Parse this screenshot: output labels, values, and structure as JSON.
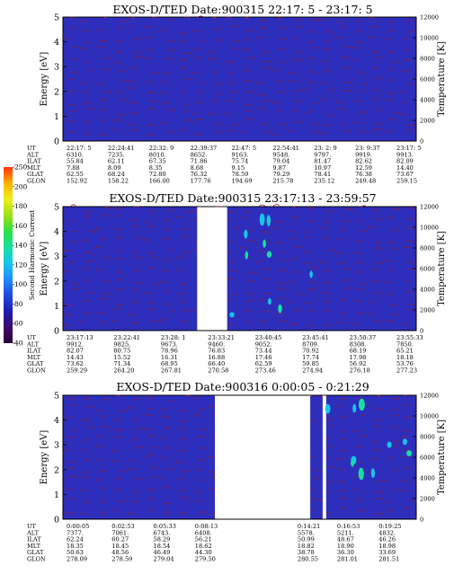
{
  "colors": {
    "background": "#2e2ebd",
    "contour": "#8a1f3a",
    "gap": "#ffffff",
    "colorbar": [
      "#2b0033",
      "#3b0a6e",
      "#1c1cb0",
      "#1e4be0",
      "#1f8bff",
      "#15c8e8",
      "#19e0a0",
      "#2ee040",
      "#9ee018",
      "#f0f018",
      "#ffb000",
      "#ff3010"
    ]
  },
  "colorbar": {
    "label": "Second Harmonic Current",
    "ticks": [
      "40",
      "60",
      "80",
      "100",
      "120",
      "140",
      "160",
      "180",
      "200",
      "250"
    ]
  },
  "chart_data": [
    {
      "type": "heatmap",
      "title": "EXOS-D/TED    Date:900315  22:17: 5 - 23:17: 5",
      "ylabel": "Energy [eV]",
      "y2label": "Temperature [K]",
      "ylim": [
        0,
        5
      ],
      "y2lim": [
        0,
        12000
      ],
      "yticks": [
        "0",
        "1",
        "2",
        "3",
        "4",
        "5"
      ],
      "y2ticks": [
        "0",
        "2000",
        "4000",
        "6000",
        "8000",
        "10000",
        "12000"
      ],
      "gaps": [],
      "table": [
        {
          "name": "UT",
          "values": [
            "22:17: 5",
            "22:24:41",
            "22:32: 9",
            "22:39:37",
            "22:47: 5",
            "22:54:41",
            "23: 2: 9",
            "23: 9:37",
            "23:17: 5"
          ]
        },
        {
          "name": "ALT",
          "values": [
            "6310.",
            "7235.",
            "8010.",
            "8652.",
            "9163.",
            "9548.",
            "9797.",
            "9919.",
            "9913."
          ]
        },
        {
          "name": "ILAT",
          "values": [
            "55.84",
            "62.11",
            "67.35",
            "71.86",
            "75.74",
            "79.04",
            "81.47",
            "82.62",
            "82.09"
          ]
        },
        {
          "name": "MLT",
          "values": [
            "7.88",
            "8.09",
            "8.35",
            "8.68",
            "9.15",
            "9.87",
            "10.97",
            "12.59",
            "14.40"
          ]
        },
        {
          "name": "GLAT",
          "values": [
            "62.55",
            "68.24",
            "72.80",
            "76.32",
            "78.59",
            "79.29",
            "78.41",
            "76.38",
            "73.67"
          ]
        },
        {
          "name": "GLON",
          "values": [
            "152.92",
            "158.22",
            "166.00",
            "177.76",
            "194.69",
            "215.78",
            "235.12",
            "249.48",
            "259.15"
          ]
        }
      ]
    },
    {
      "type": "heatmap",
      "title": "EXOS-D/TED    Date:900315  23:17:13 - 23:59:57",
      "ylabel": "Energy [eV]",
      "y2label": "Temperature [K]",
      "ylim": [
        0,
        5
      ],
      "y2lim": [
        0,
        12000
      ],
      "yticks": [
        "0",
        "1",
        "2",
        "3",
        "4",
        "5"
      ],
      "y2ticks": [
        "0",
        "2000",
        "4000",
        "6000",
        "8000",
        "10000",
        "12000"
      ],
      "gaps": [
        [
          0.38,
          0.465
        ]
      ],
      "table": [
        {
          "name": "UT",
          "values": [
            "23:17:13",
            "23:22:41",
            "23:28: 1",
            "23:33:21",
            "23:40:45",
            "23:45:41",
            "23:50:37",
            "23:55:33"
          ]
        },
        {
          "name": "ALT",
          "values": [
            "9912.",
            "9825.",
            "9673.",
            "9460.",
            "9052.",
            "8709.",
            "8308.",
            "7850."
          ]
        },
        {
          "name": "ILAT",
          "values": [
            "82.07",
            "80.75",
            "78.96",
            "76.83",
            "73.44",
            "70.92",
            "68.19",
            "65.21"
          ]
        },
        {
          "name": "MLT",
          "values": [
            "14.43",
            "15.52",
            "16.31",
            "16.88",
            "17.46",
            "17.74",
            "17.98",
            "18.18"
          ]
        },
        {
          "name": "GLAT",
          "values": [
            "73.62",
            "71.34",
            "68.95",
            "66.40",
            "62.59",
            "59.85",
            "56.92",
            "53.76"
          ]
        },
        {
          "name": "GLON",
          "values": [
            "259.29",
            "264.20",
            "267.81",
            "270.58",
            "273.46",
            "274.94",
            "276.18",
            "277.23"
          ]
        }
      ]
    },
    {
      "type": "heatmap",
      "title": "EXOS-D/TED    Date:900316   0:00:05 - 0:21:29",
      "ylabel": "Energy [eV]",
      "y2label": "Temperature [K]",
      "ylim": [
        0,
        5
      ],
      "y2lim": [
        0,
        12000
      ],
      "yticks": [
        "0",
        "1",
        "2",
        "3",
        "4",
        "5"
      ],
      "y2ticks": [
        "0",
        "2000",
        "4000",
        "6000",
        "8000",
        "10000",
        "12000"
      ],
      "gaps": [
        [
          0.43,
          0.7
        ],
        [
          0.735,
          0.745
        ]
      ],
      "table": [
        {
          "name": "UT",
          "values": [
            "0:00:05",
            "0:02:53",
            "0:05:33",
            "0:08:13",
            "0:14:21",
            "0:16:53",
            "0:19:25"
          ]
        },
        {
          "name": "ALT",
          "values": [
            "7377.",
            "7061.",
            "6743.",
            "6408.",
            "5578.",
            "5211.",
            "4832."
          ]
        },
        {
          "name": "ILAT",
          "values": [
            "62.24",
            "60.27",
            "58.29",
            "56.21",
            "50.99",
            "48.67",
            "46.26"
          ]
        },
        {
          "name": "MLT",
          "values": [
            "18.35",
            "18.45",
            "18.54",
            "18.62",
            "18.82",
            "18.90",
            "18.98"
          ]
        },
        {
          "name": "GLAT",
          "values": [
            "50.63",
            "48.56",
            "46.49",
            "44.30",
            "38.78",
            "36.30",
            "33.69"
          ]
        },
        {
          "name": "GLON",
          "values": [
            "278.09",
            "278.59",
            "279.04",
            "279.50",
            "280.55",
            "281.01",
            "281.51"
          ]
        }
      ]
    }
  ]
}
